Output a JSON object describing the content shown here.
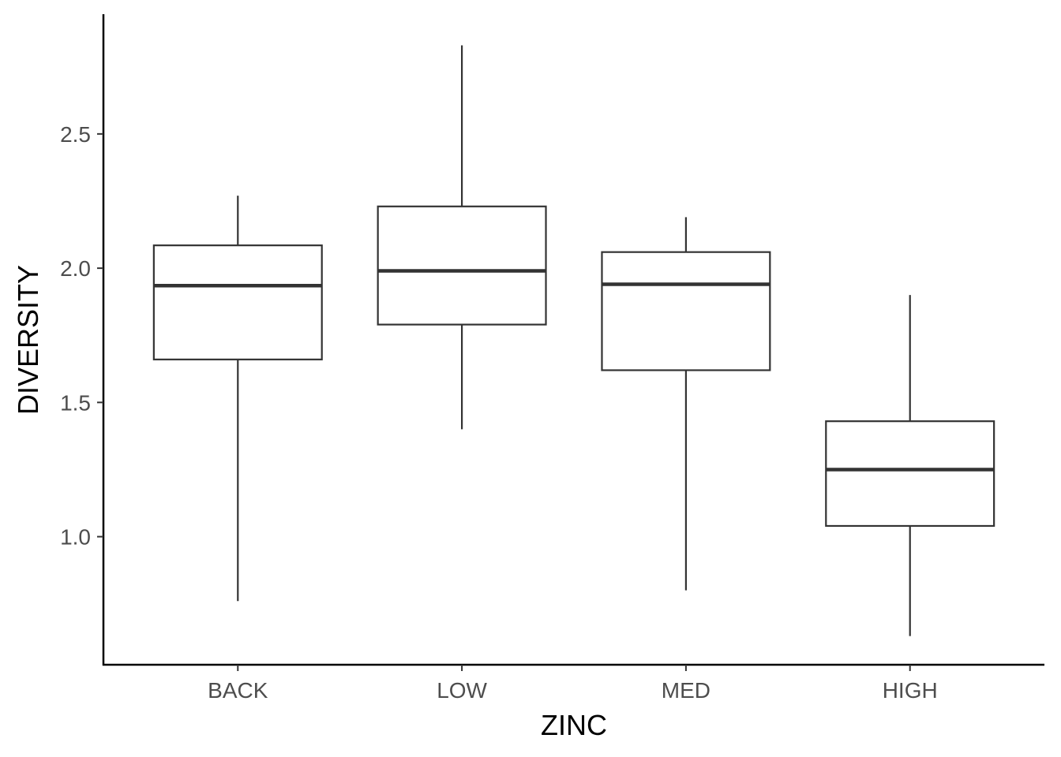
{
  "chart_data": {
    "type": "boxplot",
    "title": "",
    "xlabel": "ZINC",
    "ylabel": "DIVERSITY",
    "categories": [
      "BACK",
      "LOW",
      "MED",
      "HIGH"
    ],
    "boxes": [
      {
        "category": "BACK",
        "whisker_low": 0.76,
        "q1": 1.66,
        "median": 1.935,
        "q3": 2.085,
        "whisker_high": 2.27
      },
      {
        "category": "LOW",
        "whisker_low": 1.4,
        "q1": 1.79,
        "median": 1.99,
        "q3": 2.23,
        "whisker_high": 2.83
      },
      {
        "category": "MED",
        "whisker_low": 0.8,
        "q1": 1.62,
        "median": 1.94,
        "q3": 2.06,
        "whisker_high": 2.19
      },
      {
        "category": "HIGH",
        "whisker_low": 0.63,
        "q1": 1.04,
        "median": 1.25,
        "q3": 1.43,
        "whisker_high": 1.9
      }
    ],
    "yticks": [
      1.0,
      1.5,
      2.0,
      2.5
    ],
    "ytick_labels": [
      "1.0",
      "1.5",
      "2.0",
      "2.5"
    ],
    "ylim": [
      0.523,
      2.946
    ],
    "grid": false,
    "colors": {
      "box_stroke": "#333333",
      "axis": "#000000",
      "tick_label": "#4d4d4d"
    }
  }
}
